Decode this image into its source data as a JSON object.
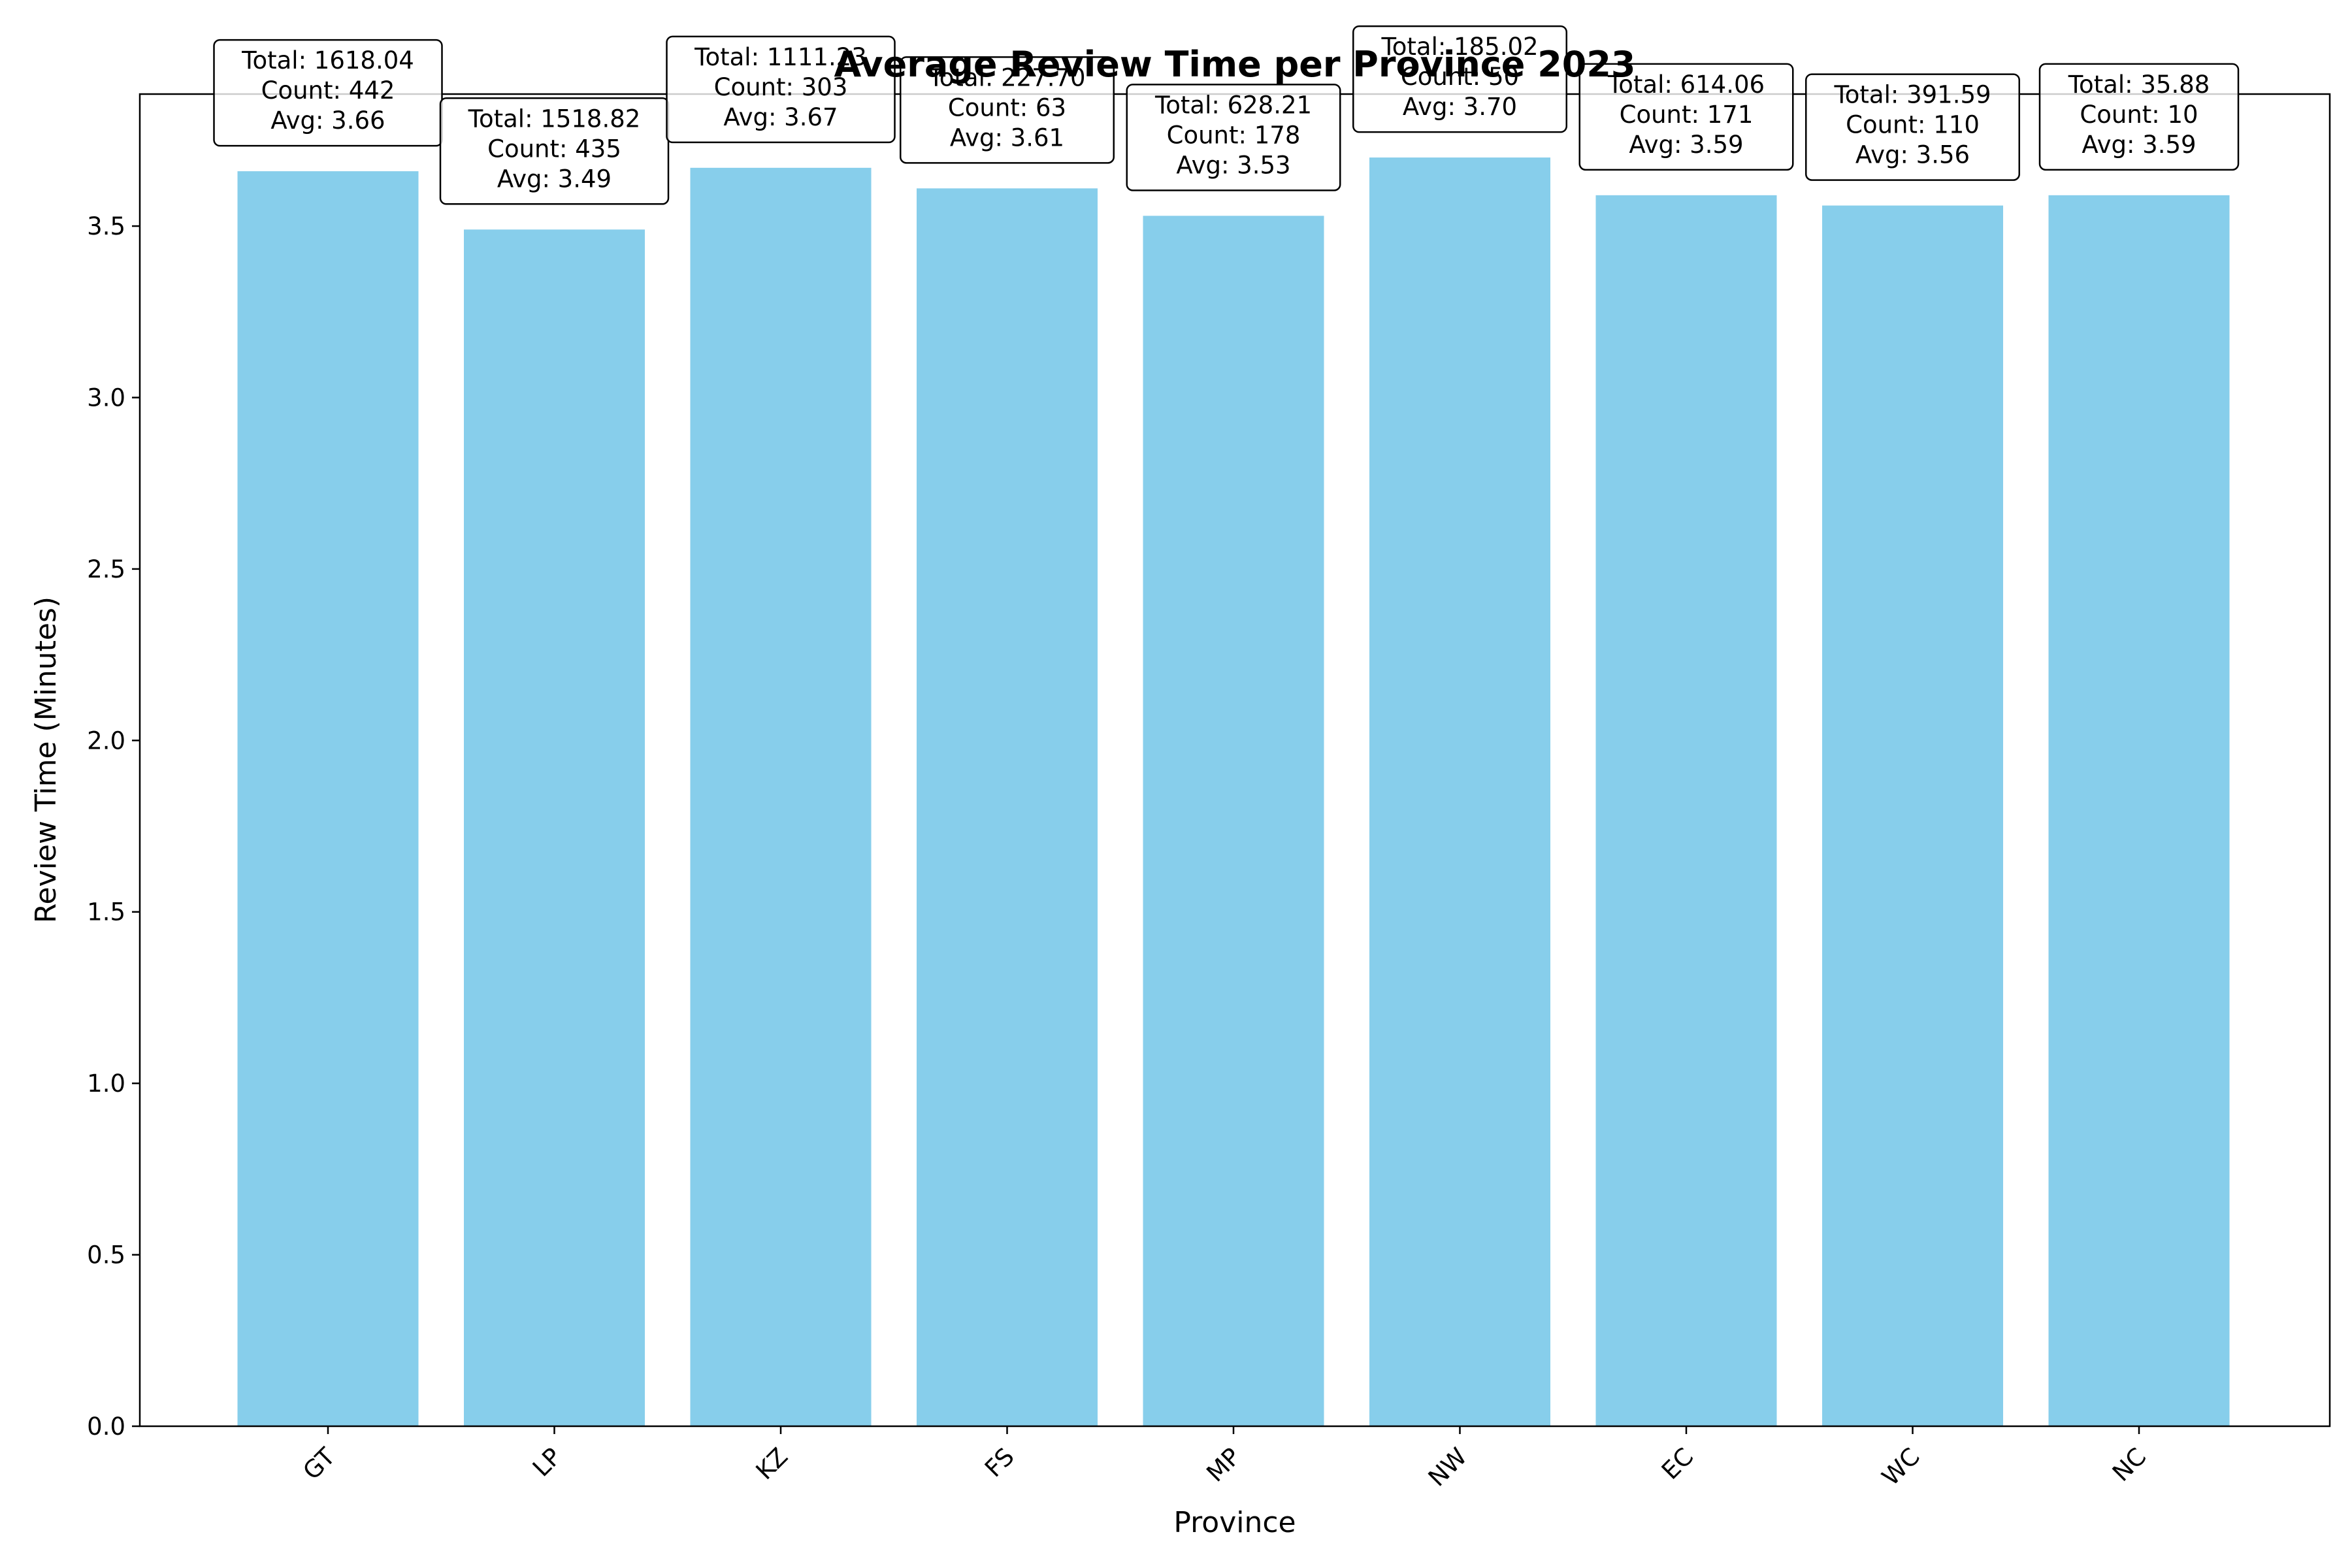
{
  "chart_data": {
    "type": "bar",
    "title": "Average Review Time per Province 2023",
    "xlabel": "Province",
    "ylabel": "Review Time (Minutes)",
    "categories": [
      "GT",
      "LP",
      "KZ",
      "FS",
      "MP",
      "NW",
      "EC",
      "WC",
      "NC"
    ],
    "values": [
      3.66,
      3.49,
      3.67,
      3.61,
      3.53,
      3.7,
      3.59,
      3.56,
      3.59
    ],
    "annotations": [
      {
        "total": "Total: 1618.04",
        "count": "Count: 442",
        "avg": "Avg: 3.66"
      },
      {
        "total": "Total: 1518.82",
        "count": "Count: 435",
        "avg": "Avg: 3.49"
      },
      {
        "total": "Total: 1111.23",
        "count": "Count: 303",
        "avg": "Avg: 3.67"
      },
      {
        "total": "Total: 227.70",
        "count": "Count: 63",
        "avg": "Avg: 3.61"
      },
      {
        "total": "Total: 628.21",
        "count": "Count: 178",
        "avg": "Avg: 3.53"
      },
      {
        "total": "Total: 185.02",
        "count": "Count: 50",
        "avg": "Avg: 3.70"
      },
      {
        "total": "Total: 614.06",
        "count": "Count: 171",
        "avg": "Avg: 3.59"
      },
      {
        "total": "Total: 391.59",
        "count": "Count: 110",
        "avg": "Avg: 3.56"
      },
      {
        "total": "Total: 35.88",
        "count": "Count: 10",
        "avg": "Avg: 3.59"
      }
    ],
    "yticks": [
      "0.0",
      "0.5",
      "1.0",
      "1.5",
      "2.0",
      "2.5",
      "3.0",
      "3.5"
    ],
    "ylim": [
      0,
      3.885
    ],
    "grid": false,
    "bar_color": "#87CEEB",
    "xtick_rotation_deg": 45
  }
}
